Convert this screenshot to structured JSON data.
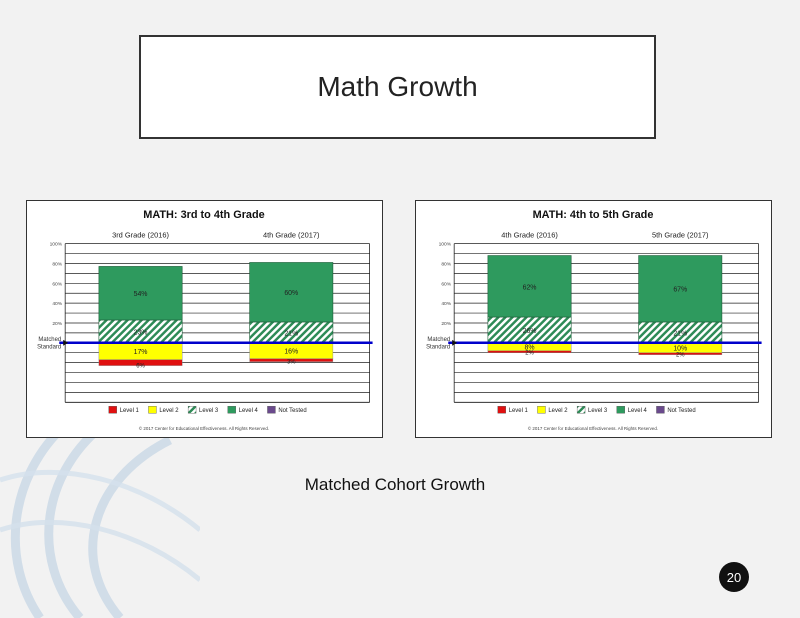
{
  "slide": {
    "title": "Math Growth",
    "caption": "Matched Cohort Growth",
    "page_number": "20"
  },
  "colors": {
    "level1": "#e01010",
    "level2": "#ffff00",
    "level3": "#2e8b57",
    "level4": "#2e9a5e",
    "not_tested": "#6a4a8c",
    "matched_line": "#0000cc"
  },
  "chart_data": [
    {
      "type": "bar",
      "title": "MATH: 3rd to 4th Grade",
      "categories": [
        "3rd Grade (2016)",
        "4th Grade (2017)"
      ],
      "baseline_label": "Matched Standard",
      "y_ticks": [
        "100%",
        "80%",
        "60%",
        "40%",
        "20%"
      ],
      "ylim": [
        -60,
        100
      ],
      "series": [
        {
          "name": "Level 4",
          "values": [
            54,
            60
          ],
          "labels": [
            "54%",
            "60%"
          ]
        },
        {
          "name": "Level 3",
          "values": [
            23,
            21
          ],
          "labels": [
            "23%",
            "21%"
          ]
        },
        {
          "name": "Level 2",
          "values": [
            -17,
            -16
          ],
          "labels": [
            "17%",
            "16%"
          ]
        },
        {
          "name": "Level 1",
          "values": [
            -6,
            -3
          ],
          "labels": [
            "6%",
            "3%"
          ]
        },
        {
          "name": "Not Tested",
          "values": [
            0,
            0
          ]
        }
      ],
      "legend": [
        "Level 1",
        "Level 2",
        "Level 3",
        "Level 4",
        "Not Tested"
      ],
      "footnote": "© 2017 Center for Educational Effectiveness. All Rights Reserved."
    },
    {
      "type": "bar",
      "title": "MATH: 4th to 5th Grade",
      "categories": [
        "4th Grade (2016)",
        "5th Grade (2017)"
      ],
      "baseline_label": "Matched Standard",
      "y_ticks": [
        "100%",
        "80%",
        "60%",
        "40%",
        "20%"
      ],
      "ylim": [
        -60,
        100
      ],
      "series": [
        {
          "name": "Level 4",
          "values": [
            62,
            67
          ],
          "labels": [
            "62%",
            "67%"
          ]
        },
        {
          "name": "Level 3",
          "values": [
            26,
            21
          ],
          "labels": [
            "26%",
            "21%"
          ]
        },
        {
          "name": "Level 2",
          "values": [
            -8,
            -10
          ],
          "labels": [
            "8%",
            "10%"
          ]
        },
        {
          "name": "Level 1",
          "values": [
            -2,
            -2
          ],
          "labels": [
            "2%",
            "2%"
          ]
        },
        {
          "name": "Not Tested",
          "values": [
            0,
            0
          ]
        }
      ],
      "legend": [
        "Level 1",
        "Level 2",
        "Level 3",
        "Level 4",
        "Not Tested"
      ],
      "footnote": "© 2017 Center for Educational Effectiveness. All Rights Reserved."
    }
  ]
}
